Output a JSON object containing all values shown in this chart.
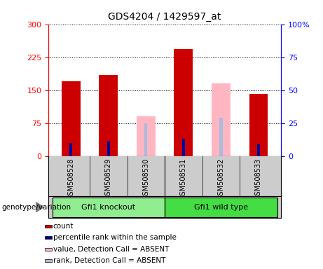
{
  "title": "GDS4204 / 1429597_at",
  "samples": [
    "GSM508528",
    "GSM508529",
    "GSM508530",
    "GSM508531",
    "GSM508532",
    "GSM508533"
  ],
  "count_values": [
    170,
    185,
    0,
    243,
    0,
    142
  ],
  "percentile_values": [
    30,
    33,
    0,
    40,
    30,
    27
  ],
  "absent_value_values": [
    0,
    0,
    90,
    0,
    165,
    0
  ],
  "absent_rank_values": [
    0,
    0,
    75,
    0,
    88,
    0
  ],
  "has_count": [
    true,
    true,
    false,
    true,
    false,
    true
  ],
  "has_absent": [
    false,
    false,
    true,
    false,
    true,
    false
  ],
  "groups": [
    {
      "label": "Gfi1 knockout",
      "indices": [
        0,
        1,
        2
      ],
      "color": "#90EE90"
    },
    {
      "label": "Gfi1 wild type",
      "indices": [
        3,
        4,
        5
      ],
      "color": "#44DD44"
    }
  ],
  "ylim_left": [
    0,
    300
  ],
  "ylim_right": [
    0,
    100
  ],
  "yticks_left": [
    0,
    75,
    150,
    225,
    300
  ],
  "yticks_right": [
    0,
    25,
    50,
    75,
    100
  ],
  "count_color": "#CC0000",
  "percentile_color": "#000099",
  "absent_value_color": "#FFB6C1",
  "absent_rank_color": "#AABBDD",
  "legend_items": [
    {
      "label": "count",
      "color": "#CC0000"
    },
    {
      "label": "percentile rank within the sample",
      "color": "#000099"
    },
    {
      "label": "value, Detection Call = ABSENT",
      "color": "#FFB6C1"
    },
    {
      "label": "rank, Detection Call = ABSENT",
      "color": "#AABBDD"
    }
  ],
  "xlabel_annotation": "genotype/variation"
}
